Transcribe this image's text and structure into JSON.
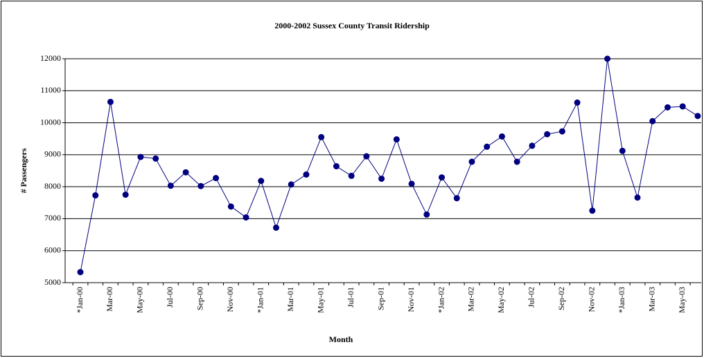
{
  "chart_data": {
    "type": "line",
    "title": "2000-2002 Sussex County Transit Ridership",
    "x_label": "Month",
    "y_label": "# Passengers",
    "categories": [
      "*Jan-00",
      null,
      "Mar-00",
      null,
      "May-00",
      null,
      "Jul-00",
      null,
      "Sep-00",
      null,
      "Nov-00",
      null,
      "*Jan-01",
      null,
      "Mar-01",
      null,
      "May-01",
      null,
      "Jul-01",
      null,
      "Sep-01",
      null,
      "Nov-01",
      null,
      "*Jan-02",
      null,
      "Mar-02",
      null,
      "May-02",
      null,
      "Jul-02",
      null,
      "Sep-02",
      null,
      "Nov-02",
      null,
      "*Jan-03",
      null,
      "Mar-03",
      null,
      "May-03",
      null
    ],
    "series": [
      {
        "name": "Ridership",
        "color": "#000080",
        "values": [
          5330,
          7730,
          10650,
          7750,
          8930,
          8880,
          8030,
          8450,
          8020,
          8270,
          7380,
          7040,
          8180,
          6720,
          8070,
          8380,
          9550,
          8640,
          8340,
          8950,
          8250,
          9480,
          8090,
          7130,
          8290,
          7640,
          8780,
          9250,
          9570,
          8780,
          9280,
          9640,
          9730,
          10630,
          7250,
          12000,
          9120,
          7660,
          10050,
          10480,
          10510,
          10210
        ]
      }
    ],
    "ylim": [
      5000,
      12000
    ],
    "yticks": [
      5000,
      6000,
      7000,
      8000,
      9000,
      10000,
      11000,
      12000
    ],
    "grid": true
  }
}
